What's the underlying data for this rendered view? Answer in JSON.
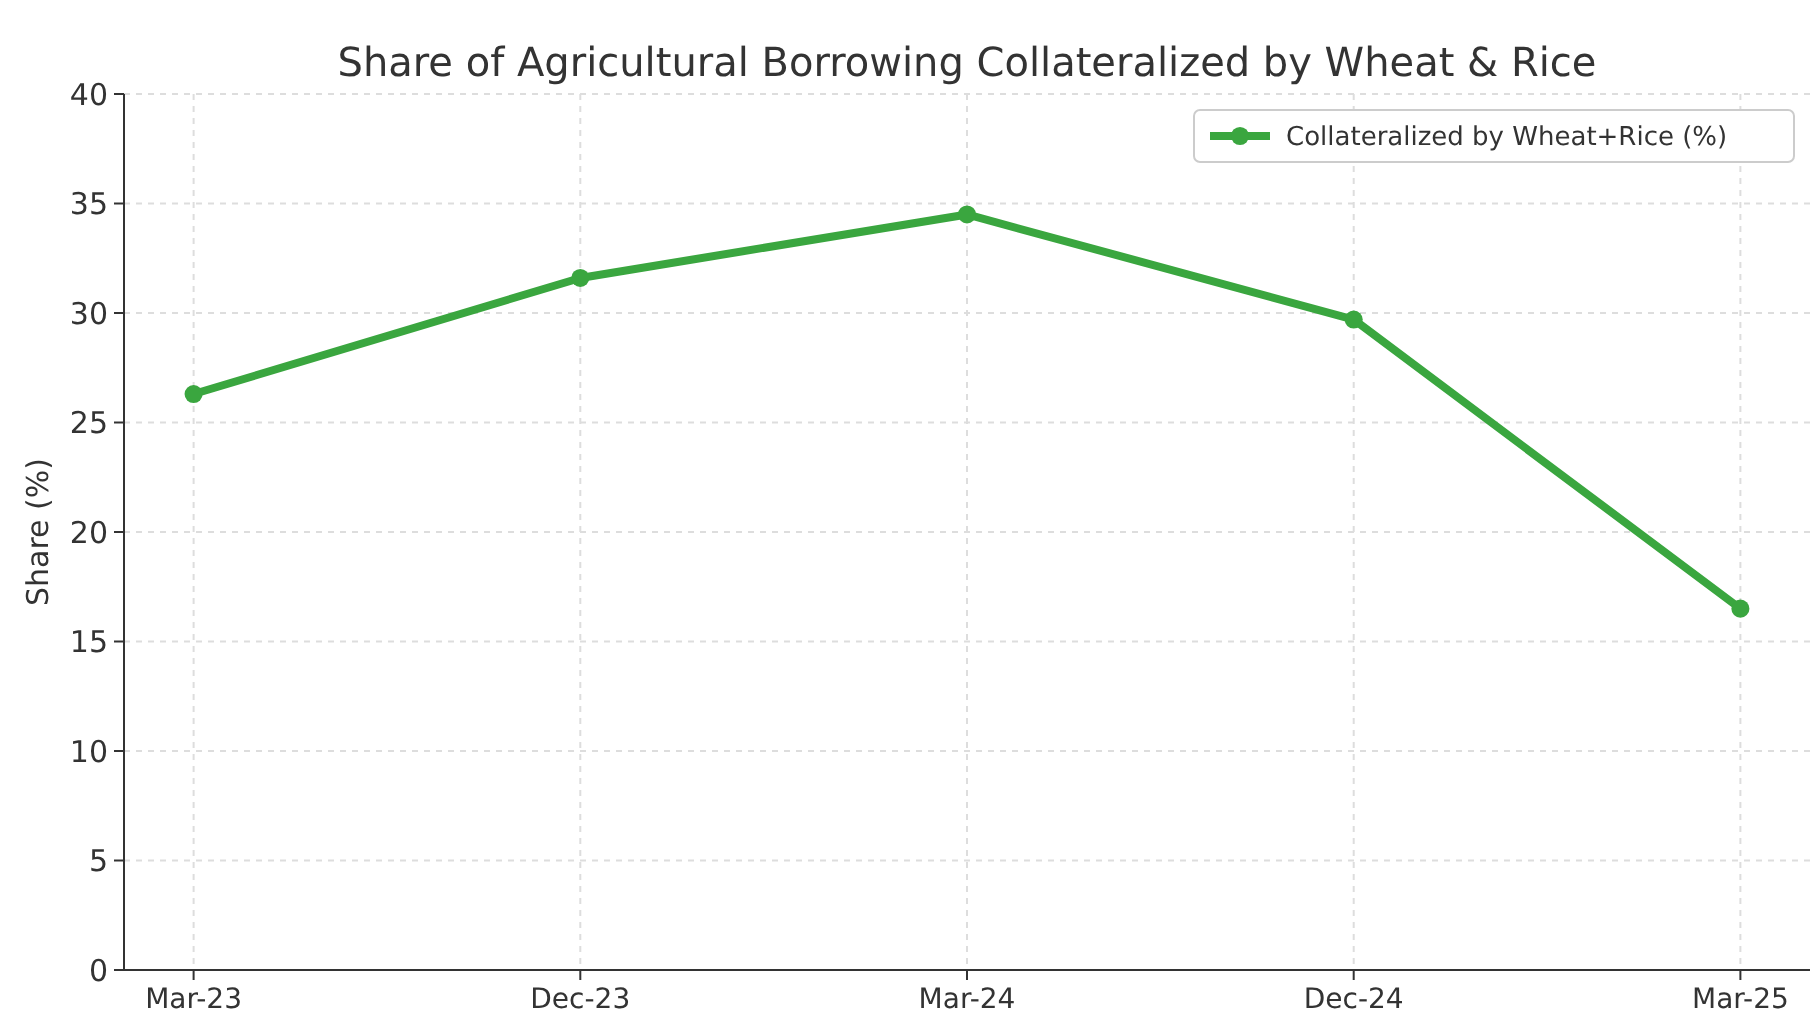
{
  "chart_data": {
    "type": "line",
    "title": "Share of Agricultural Borrowing Collateralized by Wheat & Rice",
    "ylabel": "Share (%)",
    "categories": [
      "Mar-23",
      "Dec-23",
      "Mar-24",
      "Dec-24",
      "Mar-25"
    ],
    "series": [
      {
        "name": "Collateralized by Wheat+Rice (%)",
        "color": "#3aa63f",
        "values": [
          26.3,
          31.6,
          34.5,
          29.7,
          16.5
        ]
      }
    ],
    "ylim": [
      0,
      40
    ],
    "yticks": [
      0,
      5,
      10,
      15,
      20,
      25,
      30,
      35,
      40
    ],
    "grid": true,
    "legend": "top right",
    "marker": "circle"
  }
}
